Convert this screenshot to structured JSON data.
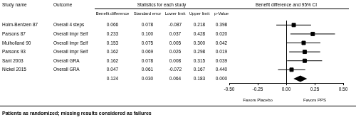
{
  "table": {
    "headers": [
      "Study name",
      "Outcome"
    ],
    "group_header": "Statistics for each study",
    "columns": [
      "Benefit difference",
      "Standard error",
      "Lower limit",
      "Upper limit",
      "p-Value"
    ],
    "rows": [
      [
        "Holm-Bentzen 87",
        "Overall 4 steps",
        "0.066",
        "0.078",
        "-0.087",
        "0.218",
        "0.398"
      ],
      [
        "Parsons 87",
        "Overall Impr Self",
        "0.233",
        "0.100",
        "0.037",
        "0.428",
        "0.020"
      ],
      [
        "Mulholland 90",
        "Overall Impr Self",
        "0.153",
        "0.075",
        "0.005",
        "0.300",
        "0.042"
      ],
      [
        "Parsons 93",
        "Overall Impr Self",
        "0.162",
        "0.069",
        "0.026",
        "0.298",
        "0.019"
      ],
      [
        "Sant 2003",
        "Overall GRA",
        "0.162",
        "0.078",
        "0.008",
        "0.315",
        "0.039"
      ],
      [
        "Nickel 2015",
        "Overall GRA",
        "0.047",
        "0.061",
        "-0.072",
        "0.167",
        "0.440"
      ]
    ],
    "summary": [
      "0.124",
      "0.030",
      "0.064",
      "0.183",
      "0.000"
    ]
  },
  "chart_data": {
    "type": "forest",
    "title": "Benefit difference and 95% CI",
    "values": [
      0.066,
      0.233,
      0.153,
      0.162,
      0.162,
      0.047
    ],
    "lower": [
      -0.087,
      0.037,
      0.005,
      0.026,
      0.008,
      -0.072
    ],
    "upper": [
      0.218,
      0.428,
      0.3,
      0.298,
      0.315,
      0.167
    ],
    "marker": "square",
    "color": "#000000",
    "summary": {
      "value": 0.124,
      "lower": 0.064,
      "upper": 0.183,
      "marker": "diamond"
    },
    "xlim": [
      -0.5,
      0.5
    ],
    "xticks": [
      {
        "value": -0.5,
        "label": "-0.50"
      },
      {
        "value": -0.25,
        "label": "-0.25"
      },
      {
        "value": 0,
        "label": "0.00"
      },
      {
        "value": 0.25,
        "label": "0.25"
      },
      {
        "value": 0.5,
        "label": "0.50"
      }
    ],
    "reference_line": 0,
    "annotations": {
      "left": "Favors Placebo",
      "right": "Favors PPS"
    },
    "grid": false,
    "tick_labels": "x"
  },
  "footnote": "Patients as randomized; missing results considered as failures"
}
